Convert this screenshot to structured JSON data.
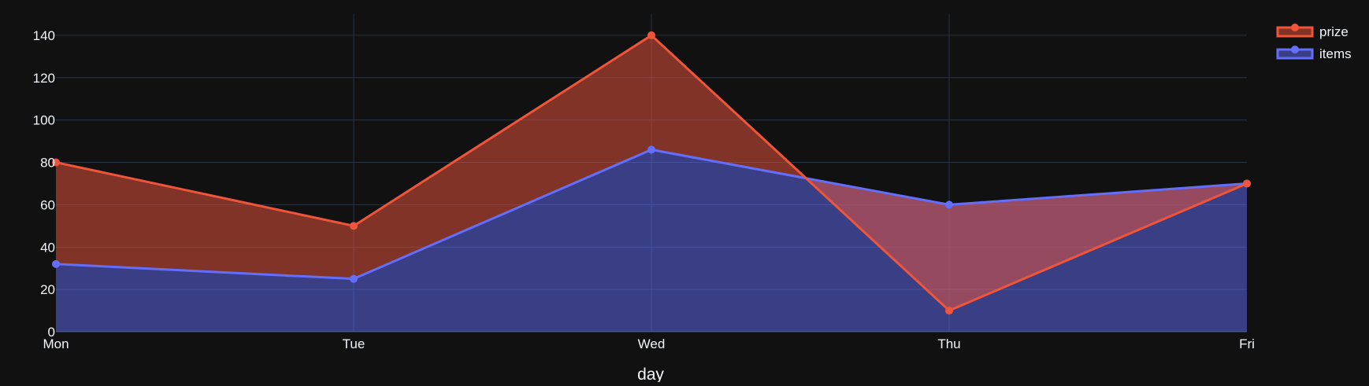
{
  "chart_data": {
    "type": "area",
    "title": "",
    "xlabel": "day",
    "ylabel": "",
    "categories": [
      "Mon",
      "Tue",
      "Wed",
      "Thu",
      "Fri"
    ],
    "ylim": [
      0,
      150
    ],
    "yticks": [
      0,
      20,
      40,
      60,
      80,
      100,
      120,
      140
    ],
    "grid": true,
    "legend_position": "top-right",
    "series": [
      {
        "name": "prize",
        "values": [
          80,
          50,
          140,
          10,
          70
        ],
        "color": "#EF553B",
        "fill": "tonexty"
      },
      {
        "name": "items",
        "values": [
          32,
          25,
          86,
          60,
          70
        ],
        "color": "#636EFA",
        "fill": "tozeroy"
      }
    ]
  },
  "theme": {
    "background": "#111111",
    "grid_color": "#283442",
    "text_color": "#f2f5fa"
  }
}
